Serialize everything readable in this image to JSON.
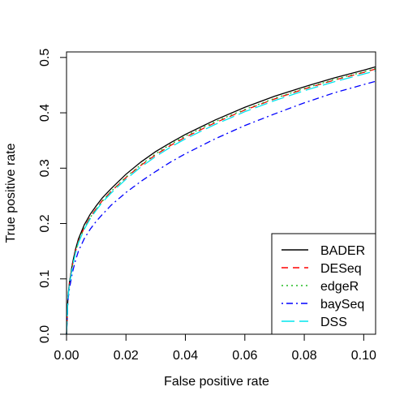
{
  "chart_data": {
    "type": "line",
    "title": "",
    "xlabel": "False positive rate",
    "ylabel": "True positive rate",
    "xlim": [
      0,
      0.104
    ],
    "ylim": [
      0,
      0.51
    ],
    "x_ticks": [
      "0.00",
      "0.02",
      "0.04",
      "0.06",
      "0.08",
      "0.10"
    ],
    "y_ticks": [
      "0.0",
      "0.1",
      "0.2",
      "0.3",
      "0.4",
      "0.5"
    ],
    "grid": false,
    "legend_position": "bottom-right",
    "series": [
      {
        "name": "BADER",
        "color": "#000000",
        "dash": "solid",
        "x": [
          0,
          0.0005,
          0.001,
          0.002,
          0.003,
          0.004,
          0.006,
          0.008,
          0.01,
          0.012,
          0.015,
          0.02,
          0.025,
          0.03,
          0.035,
          0.04,
          0.05,
          0.06,
          0.07,
          0.08,
          0.09,
          0.1,
          0.104
        ],
        "y": [
          0,
          0.07,
          0.094,
          0.128,
          0.153,
          0.172,
          0.198,
          0.217,
          0.232,
          0.246,
          0.263,
          0.289,
          0.311,
          0.33,
          0.346,
          0.361,
          0.387,
          0.41,
          0.43,
          0.447,
          0.463,
          0.477,
          0.483
        ]
      },
      {
        "name": "DESeq",
        "color": "#ff0000",
        "dash": "dashed",
        "x": [
          0,
          0.0005,
          0.001,
          0.002,
          0.003,
          0.004,
          0.006,
          0.008,
          0.01,
          0.012,
          0.015,
          0.02,
          0.025,
          0.03,
          0.035,
          0.04,
          0.05,
          0.06,
          0.07,
          0.08,
          0.09,
          0.1,
          0.104
        ],
        "y": [
          0,
          0.068,
          0.092,
          0.125,
          0.149,
          0.168,
          0.193,
          0.212,
          0.227,
          0.241,
          0.258,
          0.283,
          0.305,
          0.324,
          0.341,
          0.356,
          0.382,
          0.405,
          0.425,
          0.443,
          0.459,
          0.473,
          0.479
        ]
      },
      {
        "name": "edgeR",
        "color": "#22bb22",
        "dash": "dotted",
        "x": [
          0,
          0.0005,
          0.001,
          0.002,
          0.003,
          0.004,
          0.006,
          0.008,
          0.01,
          0.012,
          0.015,
          0.02,
          0.025,
          0.03,
          0.035,
          0.04,
          0.05,
          0.06,
          0.07,
          0.08,
          0.09,
          0.1,
          0.104
        ],
        "y": [
          0,
          0.067,
          0.091,
          0.124,
          0.148,
          0.167,
          0.192,
          0.211,
          0.226,
          0.24,
          0.258,
          0.284,
          0.306,
          0.326,
          0.343,
          0.358,
          0.384,
          0.406,
          0.426,
          0.444,
          0.46,
          0.474,
          0.48
        ]
      },
      {
        "name": "baySeq",
        "color": "#0000ff",
        "dash": "dotdash",
        "x": [
          0,
          0.0005,
          0.001,
          0.002,
          0.003,
          0.004,
          0.006,
          0.008,
          0.01,
          0.012,
          0.015,
          0.02,
          0.025,
          0.03,
          0.035,
          0.04,
          0.05,
          0.06,
          0.07,
          0.08,
          0.09,
          0.1,
          0.104
        ],
        "y": [
          0,
          0.062,
          0.083,
          0.112,
          0.133,
          0.15,
          0.173,
          0.19,
          0.204,
          0.216,
          0.233,
          0.256,
          0.276,
          0.294,
          0.311,
          0.326,
          0.353,
          0.377,
          0.398,
          0.418,
          0.436,
          0.451,
          0.457
        ]
      },
      {
        "name": "DSS",
        "color": "#00e5ee",
        "dash": "longdash",
        "x": [
          0,
          0.0005,
          0.001,
          0.002,
          0.003,
          0.004,
          0.006,
          0.008,
          0.01,
          0.012,
          0.015,
          0.02,
          0.025,
          0.03,
          0.035,
          0.04,
          0.05,
          0.06,
          0.07,
          0.08,
          0.09,
          0.1,
          0.104
        ],
        "y": [
          0,
          0.066,
          0.09,
          0.122,
          0.146,
          0.165,
          0.19,
          0.209,
          0.224,
          0.238,
          0.255,
          0.28,
          0.302,
          0.321,
          0.338,
          0.353,
          0.379,
          0.402,
          0.422,
          0.44,
          0.456,
          0.47,
          0.476
        ]
      }
    ]
  }
}
